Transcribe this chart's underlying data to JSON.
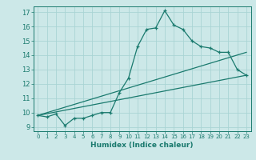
{
  "xlabel": "Humidex (Indice chaleur)",
  "xlim": [
    -0.5,
    23.5
  ],
  "ylim": [
    8.7,
    17.4
  ],
  "xticks": [
    0,
    1,
    2,
    3,
    4,
    5,
    6,
    7,
    8,
    9,
    10,
    11,
    12,
    13,
    14,
    15,
    16,
    17,
    18,
    19,
    20,
    21,
    22,
    23
  ],
  "yticks": [
    9,
    10,
    11,
    12,
    13,
    14,
    15,
    16,
    17
  ],
  "bg_color": "#cce8e8",
  "grid_color": "#aad4d4",
  "line_color": "#1a7a6e",
  "line1_x": [
    0,
    1,
    2,
    3,
    4,
    5,
    6,
    7,
    8,
    9,
    10,
    11,
    12,
    13,
    14,
    15,
    16,
    17,
    18,
    19,
    20,
    21,
    22,
    23
  ],
  "line1_y": [
    9.8,
    9.7,
    9.9,
    9.1,
    9.6,
    9.6,
    9.8,
    10.0,
    10.0,
    11.4,
    12.4,
    14.6,
    15.8,
    15.9,
    17.1,
    16.1,
    15.8,
    15.0,
    14.6,
    14.5,
    14.2,
    14.2,
    13.0,
    12.6
  ],
  "line2_x": [
    0,
    23
  ],
  "line2_y": [
    9.8,
    12.6
  ],
  "line3_x": [
    0,
    23
  ],
  "line3_y": [
    9.8,
    14.2
  ]
}
